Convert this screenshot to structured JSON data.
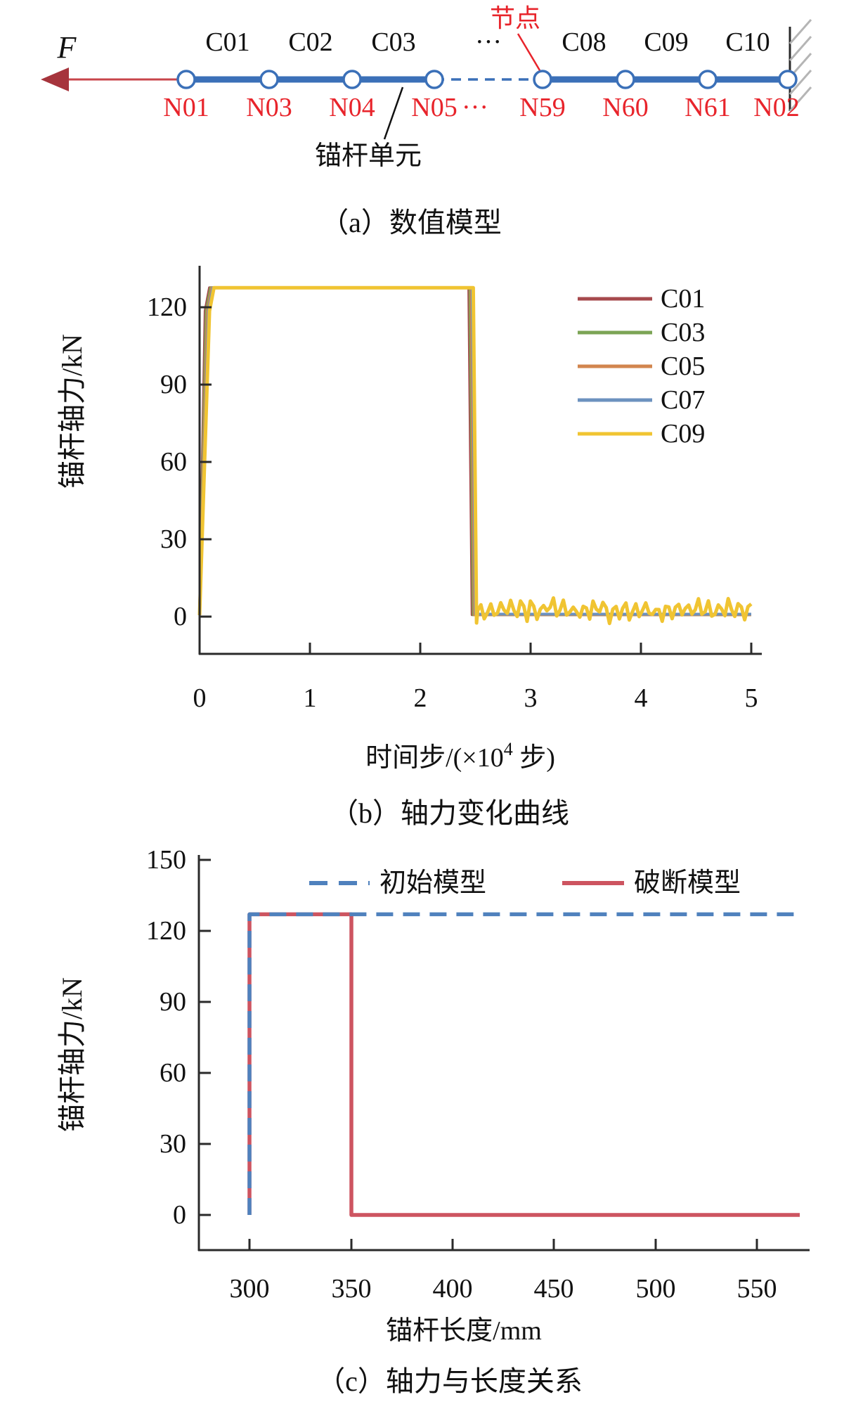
{
  "figure": {
    "caption_a": "（a）数值模型",
    "caption_b": "（b）轴力变化曲线",
    "caption_c": "（c）轴力与长度关系"
  },
  "diagram_a": {
    "force_label": "F",
    "element_labels": [
      "C01",
      "C02",
      "C03",
      "···",
      "C08",
      "C09",
      "C10"
    ],
    "node_labels": [
      "N01",
      "N03",
      "N04",
      "N05",
      "···",
      "N59",
      "N60",
      "N61",
      "N02"
    ],
    "node_annotation": "节点",
    "element_annotation": "锚杆单元",
    "colors": {
      "bar": "#3B70B8",
      "node_label": "#E8242B",
      "arrow_line": "#C8454B",
      "arrow_head": "#A6343C",
      "wall": "#B5B5B5"
    }
  },
  "chart_data": [
    {
      "id": "b",
      "type": "line",
      "title": "（b）轴力变化曲线",
      "xlabel": "时间步/(×10⁴ 步)",
      "xlabel_parts": {
        "pre": "时间步/(×10",
        "sup": "4",
        "post": " 步)"
      },
      "ylabel": "锚杆轴力/kN",
      "xlim": [
        0,
        5
      ],
      "ylim": [
        -15,
        140
      ],
      "x_ticks": [
        0,
        1,
        2,
        3,
        4,
        5
      ],
      "y_ticks": [
        0,
        30,
        60,
        90,
        120
      ],
      "grid": false,
      "legend_position": "right",
      "plateau_kN": 127,
      "drop_time_step": 2.5,
      "series": [
        {
          "name": "C01",
          "color": "#A6494C",
          "points": [
            [
              0,
              0
            ],
            [
              0.05,
              118
            ],
            [
              0.09,
              127
            ],
            [
              2.44,
              127
            ],
            [
              2.47,
              0.2
            ],
            [
              5,
              0.2
            ]
          ]
        },
        {
          "name": "C03",
          "color": "#7CA455",
          "points": [
            [
              0,
              0
            ],
            [
              0.06,
              118
            ],
            [
              0.1,
              127
            ],
            [
              2.45,
              127
            ],
            [
              2.48,
              0.2
            ],
            [
              5,
              0.2
            ]
          ]
        },
        {
          "name": "C05",
          "color": "#D2854E",
          "points": [
            [
              0,
              0
            ],
            [
              0.07,
              118
            ],
            [
              0.11,
              127
            ],
            [
              2.46,
              127
            ],
            [
              2.49,
              0.2
            ],
            [
              5,
              0.2
            ]
          ]
        },
        {
          "name": "C07",
          "color": "#6C92BF",
          "points": [
            [
              0,
              0
            ],
            [
              0.08,
              118
            ],
            [
              0.12,
              127
            ],
            [
              2.47,
              127
            ],
            [
              2.5,
              0.4
            ],
            [
              5,
              0.4
            ]
          ]
        },
        {
          "name": "C09",
          "color": "#F0C432",
          "points": [
            [
              0,
              0
            ],
            [
              0.09,
              118
            ],
            [
              0.13,
              127
            ],
            [
              2.48,
              127
            ],
            [
              2.51,
              -3
            ]
          ],
          "tail_oscillation": {
            "seed": 97,
            "points": 84,
            "x_start": 2.52,
            "x_end": 5.0,
            "mean": 2.2,
            "base_amplitude": 2.8,
            "amplitude_jitter": 2.2,
            "phase_step": 2.0,
            "min": -3.2
          }
        }
      ]
    },
    {
      "id": "c",
      "type": "line",
      "title": "（c）轴力与长度关系",
      "xlabel": "锚杆长度/mm",
      "ylabel": "锚杆轴力/kN",
      "xlim": [
        280,
        575
      ],
      "ylim": [
        -15,
        155
      ],
      "x_ticks": [
        300,
        350,
        400,
        450,
        500,
        550
      ],
      "y_ticks": [
        0,
        30,
        60,
        90,
        120,
        150
      ],
      "grid": false,
      "legend_position": "top",
      "plateau_kN": 127,
      "break_length_mm": 350,
      "series": [
        {
          "name": "初始模型",
          "color": "#4F81BD",
          "dash": "24 14",
          "points": [
            [
              300,
              0
            ],
            [
              300,
              127
            ],
            [
              570,
              127
            ]
          ]
        },
        {
          "name": "破断模型",
          "color": "#CD5460",
          "dash": null,
          "points": [
            [
              300,
              0
            ],
            [
              300,
              127
            ],
            [
              350,
              127
            ],
            [
              350,
              0
            ],
            [
              570,
              0
            ]
          ]
        }
      ]
    }
  ]
}
